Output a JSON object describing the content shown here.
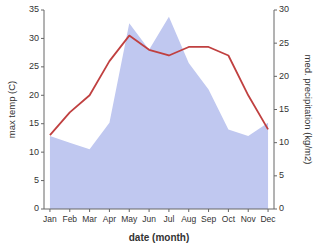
{
  "chart_data": {
    "type": "line",
    "xlabel": "date (month)",
    "ylabel": "max temp (C)",
    "y2label": "med. precipitation (kg/m2)",
    "categories": [
      "Jan",
      "Feb",
      "Mar",
      "Apr",
      "May",
      "Jun",
      "Jul",
      "Aug",
      "Sep",
      "Oct",
      "Nov",
      "Dec"
    ],
    "series": [
      {
        "type": "line",
        "color": "#c04040",
        "values": [
          13.0,
          17.0,
          20.0,
          26.0,
          30.5,
          28.0,
          27.0,
          28.5,
          28.5,
          27.0,
          20.0,
          14.0
        ]
      },
      {
        "type": "area",
        "color": "#c0c8f0",
        "axis": "y2",
        "values": [
          11.0,
          10.0,
          9.0,
          13.0,
          28.0,
          24.0,
          29.0,
          22.0,
          18.0,
          12.0,
          11.0,
          13.0
        ]
      }
    ],
    "ylim": [
      0,
      35
    ],
    "yticks": [
      0,
      5,
      10,
      15,
      20,
      25,
      30,
      35
    ],
    "y2lim": [
      0,
      30
    ],
    "y2ticks": [
      0,
      5,
      10,
      15,
      20,
      25,
      30
    ],
    "grid": false
  }
}
